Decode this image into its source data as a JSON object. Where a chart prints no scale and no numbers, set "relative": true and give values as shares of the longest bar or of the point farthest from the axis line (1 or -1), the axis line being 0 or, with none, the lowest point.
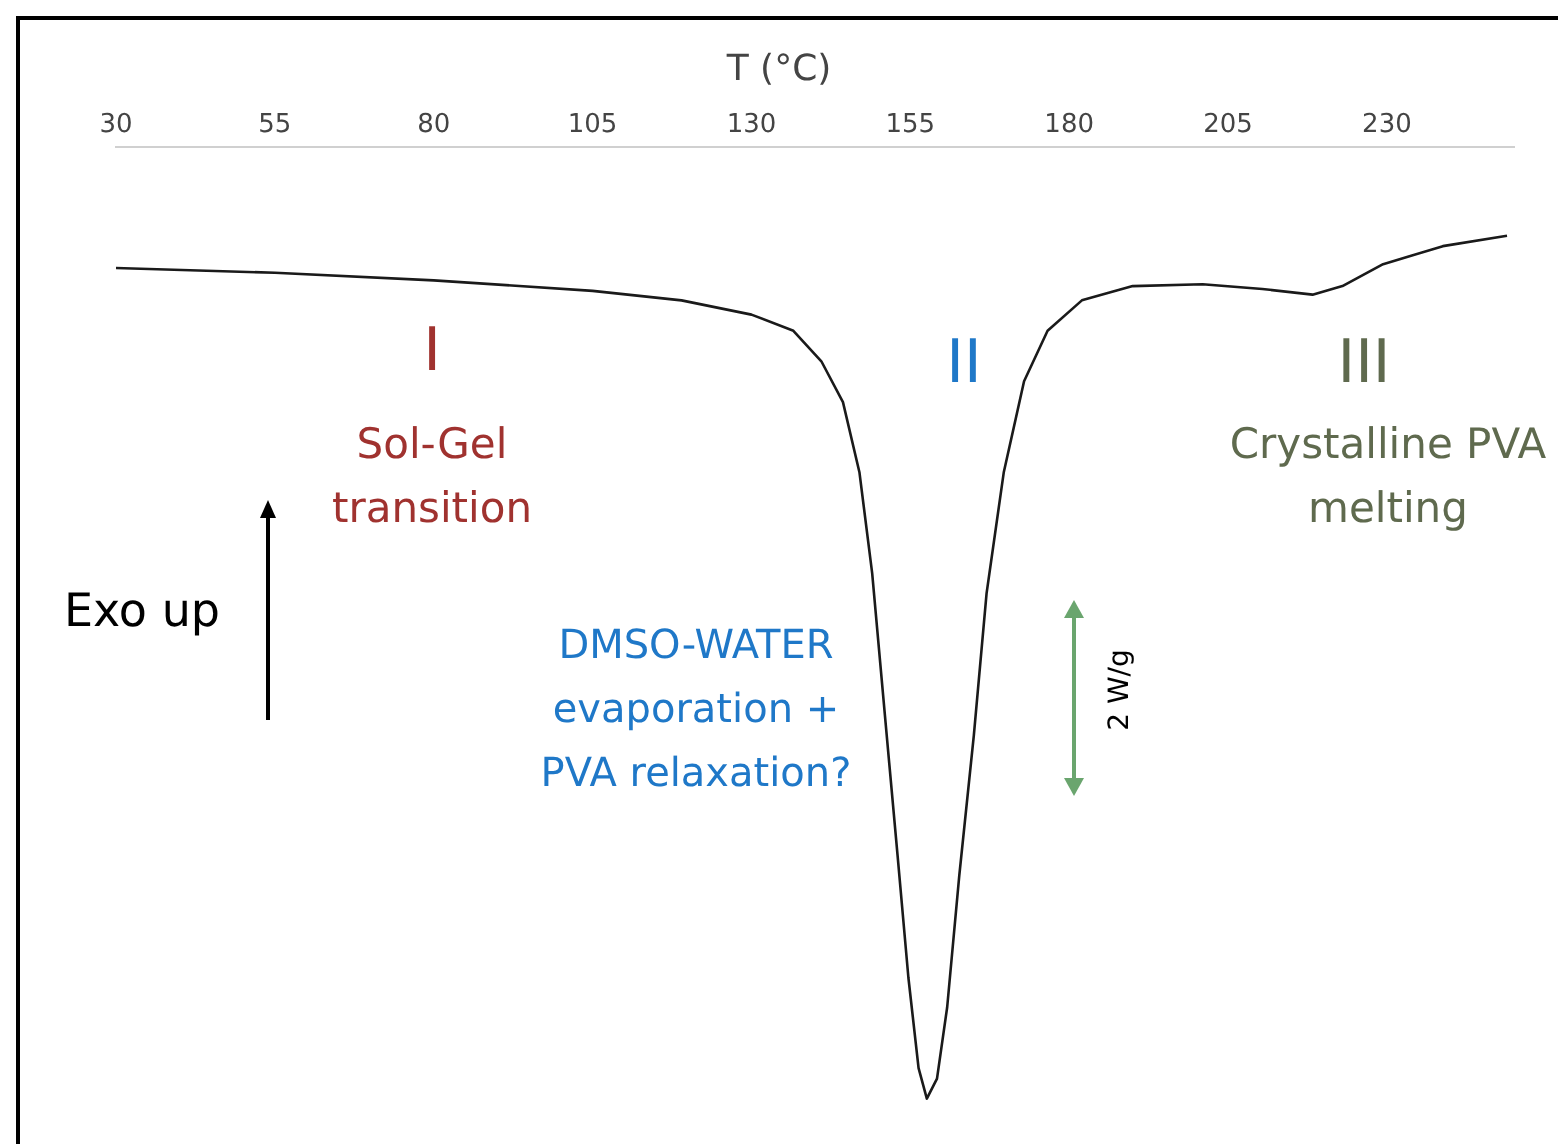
{
  "chart_data": {
    "type": "line",
    "xlabel": "T (°C)",
    "relative": true,
    "color": "#1a1a1a",
    "marker": "none",
    "grid": false,
    "legend": false,
    "tick_labels": "x",
    "xlim": [
      30,
      250
    ],
    "xticks": [
      30,
      55,
      80,
      105,
      130,
      155,
      180,
      205,
      230
    ],
    "x": [
      30,
      55,
      80,
      105,
      119,
      130,
      136.6,
      141,
      144.4,
      147,
      149,
      151,
      153,
      154.7,
      156.3,
      157.6,
      159.2,
      160.8,
      162.7,
      165,
      167,
      169.7,
      172.9,
      176.6,
      182,
      190,
      201,
      210.4,
      218.3,
      223,
      229.4,
      238.8,
      248.9
    ],
    "values": [
      -0.127,
      -0.132,
      -0.14,
      -0.151,
      -0.161,
      -0.176,
      -0.193,
      -0.225,
      -0.268,
      -0.342,
      -0.448,
      -0.597,
      -0.745,
      -0.873,
      -0.968,
      -1,
      -0.979,
      -0.904,
      -0.766,
      -0.618,
      -0.469,
      -0.342,
      -0.246,
      -0.193,
      -0.161,
      -0.146,
      -0.144,
      -0.149,
      -0.155,
      -0.146,
      -0.123,
      -0.104,
      -0.093
    ],
    "annotations": [
      "I",
      "Sol-Gel transition",
      "II",
      "DMSO-WATER evaporation + PVA relaxation?",
      "III",
      "Crystalline PVA melting",
      "Exo up",
      "2 W/g"
    ]
  }
}
